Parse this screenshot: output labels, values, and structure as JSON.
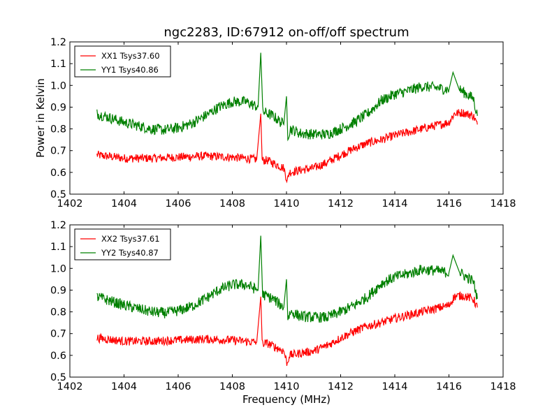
{
  "figure_title": "ngc2283, ID:67912 on-off/off spectrum",
  "xlabel": "Frequency (MHz)",
  "ylabel": "Power in Kelvin",
  "colors": {
    "red": "#ff0000",
    "green": "#008000"
  },
  "chart_data": [
    {
      "type": "line",
      "title": "ngc2283, ID:67912 on-off/off spectrum",
      "xlabel": "",
      "ylabel": "Power in Kelvin",
      "xlim": [
        1402,
        1418
      ],
      "ylim": [
        0.5,
        1.2
      ],
      "xticks": [
        "1402",
        "1404",
        "1406",
        "1408",
        "1410",
        "1412",
        "1414",
        "1416",
        "1418"
      ],
      "yticks": [
        "0.5",
        "0.6",
        "0.7",
        "0.8",
        "0.9",
        "1.0",
        "1.1",
        "1.2"
      ],
      "legend_position": "top-left",
      "grid": false,
      "series": [
        {
          "name": "XX1 Tsys37.60",
          "color": "#ff0000",
          "noise": 0.02,
          "x": [
            1403.0,
            1404.0,
            1405.0,
            1406.0,
            1407.0,
            1408.0,
            1408.9,
            1409.05,
            1409.1,
            1409.3,
            1409.9,
            1410.03,
            1410.1,
            1410.5,
            1411.0,
            1411.5,
            1412.0,
            1412.5,
            1413.0,
            1413.5,
            1414.0,
            1414.5,
            1415.0,
            1415.5,
            1416.0,
            1416.2,
            1416.5,
            1416.9,
            1417.05
          ],
          "y": [
            0.68,
            0.665,
            0.665,
            0.67,
            0.675,
            0.67,
            0.66,
            0.87,
            0.655,
            0.655,
            0.62,
            0.56,
            0.6,
            0.61,
            0.62,
            0.645,
            0.68,
            0.71,
            0.735,
            0.75,
            0.77,
            0.785,
            0.8,
            0.815,
            0.83,
            0.87,
            0.875,
            0.86,
            0.82
          ]
        },
        {
          "name": "YY1 Tsys40.86",
          "color": "#008000",
          "noise": 0.025,
          "x": [
            1403.0,
            1403.5,
            1404.0,
            1404.5,
            1405.0,
            1405.5,
            1406.0,
            1406.5,
            1407.0,
            1407.5,
            1408.0,
            1408.5,
            1408.95,
            1409.05,
            1409.12,
            1409.5,
            1409.9,
            1410.0,
            1410.05,
            1410.15,
            1410.5,
            1411.0,
            1411.5,
            1412.0,
            1412.5,
            1413.0,
            1413.5,
            1414.0,
            1414.5,
            1415.0,
            1415.5,
            1416.0,
            1416.15,
            1416.4,
            1416.9,
            1417.05
          ],
          "y": [
            0.87,
            0.85,
            0.83,
            0.815,
            0.8,
            0.795,
            0.805,
            0.825,
            0.86,
            0.9,
            0.925,
            0.925,
            0.9,
            1.15,
            0.88,
            0.86,
            0.82,
            0.95,
            0.77,
            0.8,
            0.78,
            0.775,
            0.775,
            0.8,
            0.83,
            0.87,
            0.93,
            0.96,
            0.975,
            0.995,
            0.99,
            0.98,
            1.06,
            0.98,
            0.94,
            0.86
          ]
        }
      ]
    },
    {
      "type": "line",
      "title": "",
      "xlabel": "Frequency (MHz)",
      "ylabel": "",
      "xlim": [
        1402,
        1418
      ],
      "ylim": [
        0.5,
        1.2
      ],
      "xticks": [
        "1402",
        "1404",
        "1406",
        "1408",
        "1410",
        "1412",
        "1414",
        "1416",
        "1418"
      ],
      "yticks": [
        "0.5",
        "0.6",
        "0.7",
        "0.8",
        "0.9",
        "1.0",
        "1.1",
        "1.2"
      ],
      "legend_position": "top-left",
      "grid": false,
      "series": [
        {
          "name": "XX2 Tsys37.61",
          "color": "#ff0000",
          "noise": 0.02,
          "x": [
            1403.0,
            1404.0,
            1405.0,
            1406.0,
            1407.0,
            1408.0,
            1408.9,
            1409.05,
            1409.1,
            1409.3,
            1409.9,
            1410.03,
            1410.1,
            1410.5,
            1411.0,
            1411.5,
            1412.0,
            1412.5,
            1413.0,
            1413.5,
            1414.0,
            1414.5,
            1415.0,
            1415.5,
            1416.0,
            1416.2,
            1416.5,
            1416.9,
            1417.05
          ],
          "y": [
            0.68,
            0.665,
            0.665,
            0.67,
            0.675,
            0.67,
            0.66,
            0.87,
            0.655,
            0.655,
            0.62,
            0.56,
            0.6,
            0.61,
            0.62,
            0.645,
            0.68,
            0.71,
            0.735,
            0.75,
            0.77,
            0.785,
            0.8,
            0.815,
            0.83,
            0.87,
            0.875,
            0.86,
            0.82
          ]
        },
        {
          "name": "YY2 Tsys40.87",
          "color": "#008000",
          "noise": 0.025,
          "x": [
            1403.0,
            1403.5,
            1404.0,
            1404.5,
            1405.0,
            1405.5,
            1406.0,
            1406.5,
            1407.0,
            1407.5,
            1408.0,
            1408.5,
            1408.95,
            1409.05,
            1409.12,
            1409.5,
            1409.9,
            1410.0,
            1410.05,
            1410.15,
            1410.5,
            1411.0,
            1411.5,
            1412.0,
            1412.5,
            1413.0,
            1413.5,
            1414.0,
            1414.5,
            1415.0,
            1415.5,
            1416.0,
            1416.15,
            1416.4,
            1416.9,
            1417.05
          ],
          "y": [
            0.87,
            0.85,
            0.83,
            0.815,
            0.8,
            0.795,
            0.805,
            0.825,
            0.86,
            0.9,
            0.925,
            0.925,
            0.9,
            1.15,
            0.88,
            0.86,
            0.82,
            0.95,
            0.77,
            0.8,
            0.78,
            0.775,
            0.775,
            0.8,
            0.83,
            0.87,
            0.93,
            0.96,
            0.975,
            0.995,
            0.99,
            0.98,
            1.06,
            0.98,
            0.94,
            0.86
          ]
        }
      ]
    }
  ]
}
